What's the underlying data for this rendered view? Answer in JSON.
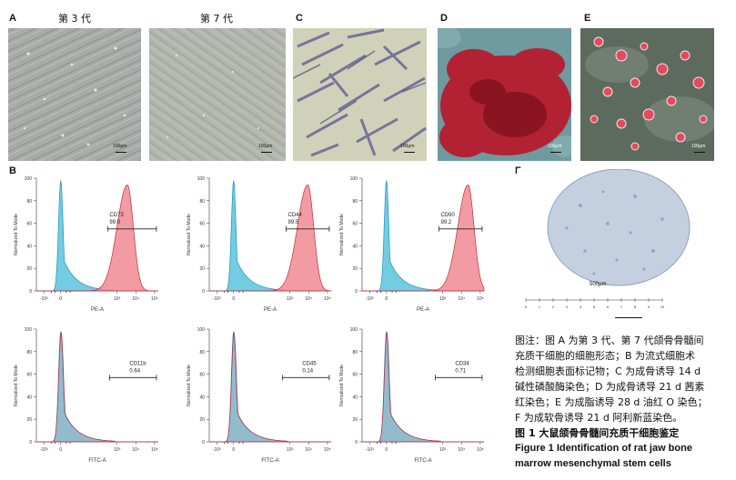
{
  "panels": {
    "A": "A",
    "B": "B",
    "C": "C",
    "D": "D",
    "E": "E",
    "F": "F"
  },
  "panel_a": {
    "left_title": "第 3 代",
    "right_title": "第 7 代",
    "left_scale": "100μm",
    "right_scale": "100μm"
  },
  "panel_c": {
    "scale": "100μm"
  },
  "panel_d": {
    "scale": "100μm"
  },
  "panel_e": {
    "scale": "100μm"
  },
  "panel_f": {
    "scale": "500μm",
    "ruler_ticks": [
      "0",
      "1",
      "2",
      "3",
      "4",
      "5",
      "6",
      "7",
      "8",
      "9",
      "10"
    ]
  },
  "colors": {
    "positive_fill": "#f08a93",
    "positive_stroke": "#c62a3a",
    "control_fill": "#5bc3dc",
    "control_stroke": "#1c95bd",
    "gate": "#222222"
  },
  "chart_data": [
    {
      "type": "area",
      "title": "",
      "xlabel": "PE-A",
      "ylabel": "Normalized To Mode",
      "marker": "CD73",
      "percent": "99.0",
      "xticks": [
        "-10³",
        "0",
        "10³",
        "10⁴",
        "10⁵"
      ],
      "yticks": [
        "0",
        "20",
        "40",
        "60",
        "80",
        "100"
      ],
      "ylim": [
        0,
        100
      ],
      "control_peak_log": 0.0,
      "positive_peak_log": 3.55
    },
    {
      "type": "area",
      "title": "",
      "xlabel": "PE-A",
      "ylabel": "Normalized To Mode",
      "marker": "CD44",
      "percent": "99.5",
      "xticks": [
        "-10³",
        "0",
        "10³",
        "10⁴",
        "10⁵"
      ],
      "yticks": [
        "0",
        "20",
        "40",
        "60",
        "80",
        "100"
      ],
      "ylim": [
        0,
        100
      ],
      "control_peak_log": 0.0,
      "positive_peak_log": 3.95
    },
    {
      "type": "area",
      "title": "",
      "xlabel": "PE-A",
      "ylabel": "Normalized To Mode",
      "marker": "CD90",
      "percent": "99.2",
      "xticks": [
        "-10³",
        "0",
        "10³",
        "10⁴",
        "10⁵"
      ],
      "yticks": [
        "0",
        "20",
        "40",
        "60",
        "80",
        "100"
      ],
      "ylim": [
        0,
        100
      ],
      "control_peak_log": 0.0,
      "positive_peak_log": 4.35
    },
    {
      "type": "area",
      "title": "",
      "xlabel": "FITC-A",
      "ylabel": "Normalized To Mode",
      "marker": "CD11b",
      "percent": "0.64",
      "xticks": [
        "-10³",
        "0",
        "10³",
        "10⁴",
        "10⁵"
      ],
      "yticks": [
        "0",
        "20",
        "40",
        "60",
        "80",
        "100"
      ],
      "ylim": [
        0,
        100
      ],
      "control_peak_log": 0.0,
      "positive_peak_log": 0.0
    },
    {
      "type": "area",
      "title": "",
      "xlabel": "FITC-A",
      "ylabel": "Normalized To Mode",
      "marker": "CD45",
      "percent": "0.14",
      "xticks": [
        "-10³",
        "0",
        "10³",
        "10⁴",
        "10⁵"
      ],
      "yticks": [
        "0",
        "20",
        "40",
        "60",
        "80",
        "100"
      ],
      "ylim": [
        0,
        100
      ],
      "control_peak_log": 0.0,
      "positive_peak_log": 0.0
    },
    {
      "type": "area",
      "title": "",
      "xlabel": "FITC-A",
      "ylabel": "Normalized To Mode",
      "marker": "CD34",
      "percent": "0.71",
      "xticks": [
        "-10³",
        "0",
        "10³",
        "10⁴",
        "10⁵"
      ],
      "yticks": [
        "0",
        "20",
        "40",
        "60",
        "80",
        "100"
      ],
      "ylim": [
        0,
        100
      ],
      "control_peak_log": 0.0,
      "positive_peak_log": 0.0
    }
  ],
  "caption": {
    "line1": "图注：图 A 为第 3 代、第 7 代颌骨骨髓间",
    "line2": "充质干细胞的细胞形态；B 为流式细胞术",
    "line3": "检测细胞表面标记物；C 为成骨诱导 14 d",
    "line4": "碱性磷酸酶染色；D 为成骨诱导 21 d 茜素",
    "line5": "红染色；E 为成脂诱导 28 d 油红 O 染色；",
    "line6": "F 为成软骨诱导 21 d 阿利新蓝染色。",
    "title_cn": "图 1  大鼠颌骨骨髓间充质干细胞鉴定",
    "title_en1": "Figure 1    Identification of rat jaw bone",
    "title_en2": "marrow mesenchymal stem cells"
  }
}
